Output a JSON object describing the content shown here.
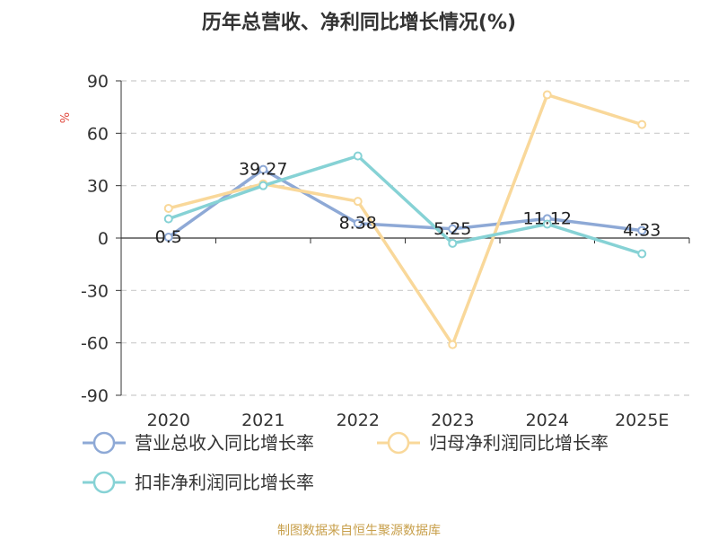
{
  "chart_data": {
    "type": "line",
    "title": "历年总营收、净利同比增长情况(%)",
    "ylabel": "%",
    "xlabel": "",
    "categories": [
      "2020",
      "2021",
      "2022",
      "2023",
      "2024",
      "2025E"
    ],
    "ylim": [
      -90,
      90
    ],
    "yticks": [
      90,
      60,
      30,
      0,
      -30,
      -60,
      -90
    ],
    "grid": true,
    "legend_position": "bottom",
    "series": [
      {
        "name": "营业总收入同比增长率",
        "color": "#8ea9d6",
        "values": [
          0.5,
          39.27,
          8.38,
          5.25,
          11.12,
          4.33
        ],
        "data_labels": [
          "0.5",
          "39.27",
          "8.38",
          "5.25",
          "11.12",
          "4.33"
        ]
      },
      {
        "name": "归母净利润同比增长率",
        "color": "#f9d89a",
        "values": [
          17,
          31,
          21,
          -61,
          82,
          65
        ]
      },
      {
        "name": "扣非净利润同比增长率",
        "color": "#86d2d5",
        "values": [
          11,
          30,
          47,
          -3,
          8,
          -9
        ]
      }
    ]
  },
  "footer": {
    "source": "制图数据来自恒生聚源数据库"
  }
}
